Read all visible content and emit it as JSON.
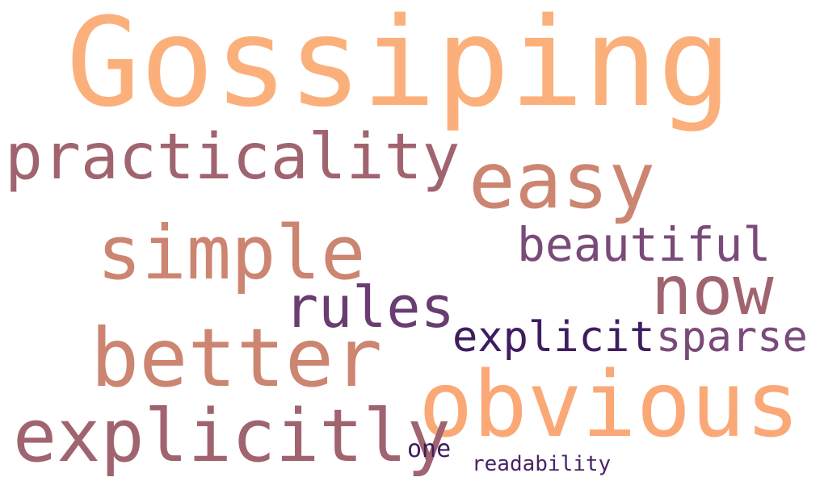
{
  "words": [
    {
      "text": "Gossiping",
      "color": "#FBB07C"
    },
    {
      "text": "practicality",
      "color": "#A0646F"
    },
    {
      "text": "easy",
      "color": "#CC8571"
    },
    {
      "text": "simple",
      "color": "#CC8571"
    },
    {
      "text": "beautiful",
      "color": "#7A4A79"
    },
    {
      "text": "now",
      "color": "#A0646F"
    },
    {
      "text": "rules",
      "color": "#6A3D72"
    },
    {
      "text": "better",
      "color": "#CC8571"
    },
    {
      "text": "explicit",
      "color": "#3E1D5F"
    },
    {
      "text": "sparse",
      "color": "#7A4A79"
    },
    {
      "text": "obvious",
      "color": "#FBA877"
    },
    {
      "text": "explicitly",
      "color": "#A0646F"
    },
    {
      "text": "one",
      "color": "#3E1D5F"
    },
    {
      "text": "readability",
      "color": "#4A2466"
    }
  ]
}
